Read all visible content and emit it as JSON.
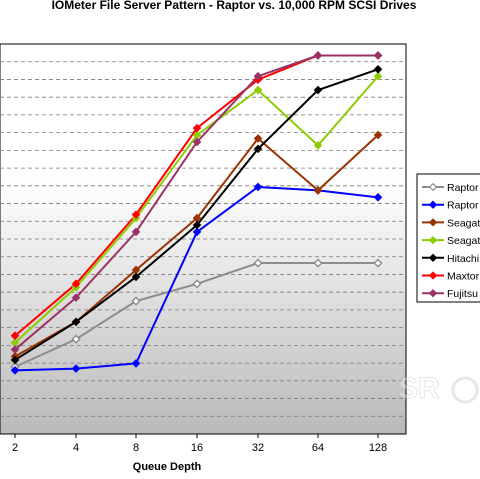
{
  "chart_data": {
    "type": "line",
    "title": "IOMeter File Server Pattern - Raptor vs. 10,000 RPM SCSI Drives",
    "xlabel": "Queue Depth",
    "ylabel": "",
    "categories": [
      "2",
      "4",
      "8",
      "16",
      "32",
      "64",
      "128"
    ],
    "ylim": [
      0,
      100
    ],
    "grid": "horizontal-dashed",
    "legend_position": "right",
    "series": [
      {
        "name": "Raptor",
        "color": "#8c8c8c",
        "marker": "diamond-open",
        "values": [
          9,
          17,
          28,
          33,
          39,
          39,
          39
        ]
      },
      {
        "name": "Raptor",
        "color": "#0000ff",
        "marker": "diamond",
        "values": [
          8,
          8.5,
          10,
          48,
          61,
          60,
          58
        ]
      },
      {
        "name": "Seagat",
        "color": "#993300",
        "marker": "diamond",
        "values": [
          12,
          22,
          37,
          52,
          75,
          60,
          76
        ]
      },
      {
        "name": "Seagat",
        "color": "#8ccc00",
        "marker": "diamond",
        "values": [
          16,
          32,
          52,
          76,
          89,
          73,
          93
        ]
      },
      {
        "name": "Hitachi",
        "color": "#000000",
        "marker": "diamond",
        "values": [
          11,
          22,
          35,
          50,
          72,
          89,
          95
        ]
      },
      {
        "name": "Maxtor",
        "color": "#ff0000",
        "marker": "diamond",
        "values": [
          18,
          33,
          53,
          78,
          92,
          99,
          99
        ]
      },
      {
        "name": "Fujitsu",
        "color": "#993366",
        "marker": "diamond",
        "values": [
          14,
          29,
          48,
          74,
          93,
          99,
          99
        ]
      }
    ]
  }
}
